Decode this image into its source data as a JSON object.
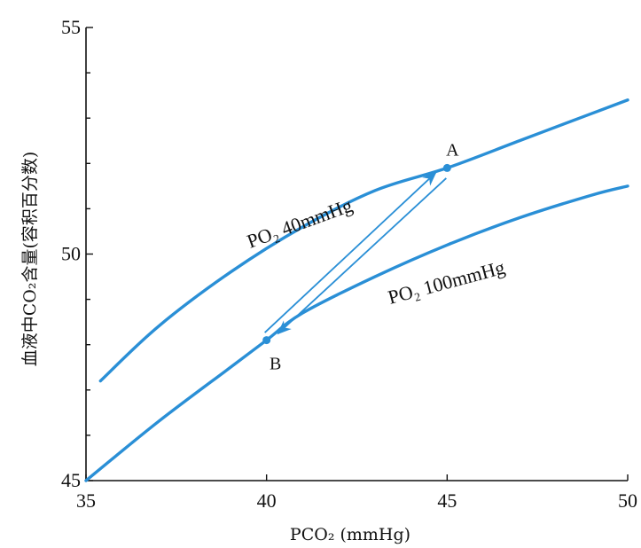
{
  "chart_data": {
    "type": "line",
    "title": "",
    "xlabel": "PCO₂ (mmHg)",
    "ylabel": "血液中CO₂含量(容积百分数)",
    "xlim": [
      35,
      50
    ],
    "ylim": [
      45,
      55
    ],
    "x_ticks": [
      "35",
      "40",
      "45",
      "50"
    ],
    "y_ticks": [
      "45",
      "50",
      "55"
    ],
    "grid": false,
    "line_color": "#2a8fd6",
    "series": [
      {
        "name": "PO₂ 40mmHg",
        "x": [
          35.4,
          37,
          39,
          41,
          43,
          45,
          47,
          49,
          50
        ],
        "y": [
          47.2,
          48.4,
          49.6,
          50.6,
          51.4,
          51.9,
          52.5,
          53.1,
          53.4
        ]
      },
      {
        "name": "PO₂ 100mmHg",
        "x": [
          35,
          37,
          39,
          40,
          41,
          43,
          45,
          47,
          49,
          50
        ],
        "y": [
          45.0,
          46.3,
          47.5,
          48.1,
          48.7,
          49.5,
          50.2,
          50.8,
          51.3,
          51.5
        ]
      }
    ],
    "points": [
      {
        "label": "A",
        "x": 45,
        "y": 51.9
      },
      {
        "label": "B",
        "x": 40,
        "y": 48.1
      }
    ],
    "arrows": [
      {
        "from": "B",
        "to": "A"
      },
      {
        "from": "A",
        "to": "B"
      }
    ]
  }
}
